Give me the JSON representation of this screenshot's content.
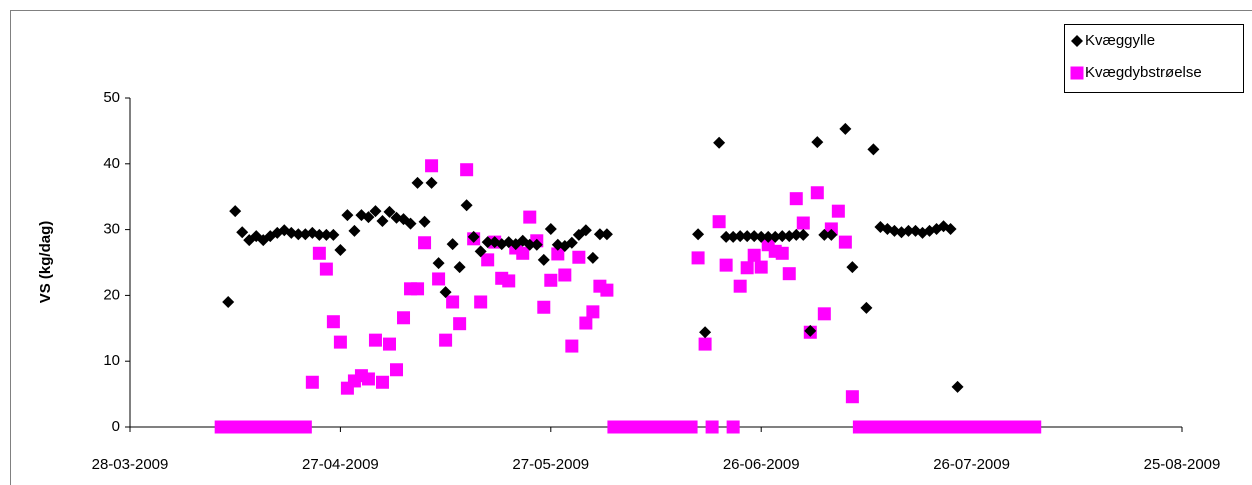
{
  "chart_data": {
    "type": "scatter",
    "y_label": "VS (kg/dag)",
    "xlim": [
      "2009-03-28",
      "2009-08-25"
    ],
    "xticks": [
      {
        "value": "2009-03-28",
        "label": "28-03-2009"
      },
      {
        "value": "2009-04-27",
        "label": "27-04-2009"
      },
      {
        "value": "2009-05-27",
        "label": "27-05-2009"
      },
      {
        "value": "2009-06-26",
        "label": "26-06-2009"
      },
      {
        "value": "2009-07-26",
        "label": "26-07-2009"
      },
      {
        "value": "2009-08-25",
        "label": "25-08-2009"
      }
    ],
    "ylim": [
      0,
      50
    ],
    "yticks": [
      0,
      10,
      20,
      30,
      40,
      50
    ],
    "grid": false,
    "legend": "top-right",
    "series": [
      {
        "name": "Kvæggylle",
        "color": "#000000",
        "marker": "diamond",
        "x": [
          "2009-04-11",
          "2009-04-12",
          "2009-04-13",
          "2009-04-14",
          "2009-04-15",
          "2009-04-16",
          "2009-04-17",
          "2009-04-18",
          "2009-04-19",
          "2009-04-20",
          "2009-04-21",
          "2009-04-22",
          "2009-04-23",
          "2009-04-24",
          "2009-04-25",
          "2009-04-26",
          "2009-04-27",
          "2009-04-28",
          "2009-04-29",
          "2009-04-30",
          "2009-05-01",
          "2009-05-02",
          "2009-05-03",
          "2009-05-04",
          "2009-05-05",
          "2009-05-06",
          "2009-05-07",
          "2009-05-08",
          "2009-05-09",
          "2009-05-10",
          "2009-05-11",
          "2009-05-12",
          "2009-05-13",
          "2009-05-14",
          "2009-05-15",
          "2009-05-16",
          "2009-05-17",
          "2009-05-18",
          "2009-05-19",
          "2009-05-20",
          "2009-05-21",
          "2009-05-22",
          "2009-05-23",
          "2009-05-24",
          "2009-05-25",
          "2009-05-26",
          "2009-05-27",
          "2009-05-28",
          "2009-05-29",
          "2009-05-30",
          "2009-05-31",
          "2009-06-01",
          "2009-06-02",
          "2009-06-03",
          "2009-06-04",
          "2009-06-17",
          "2009-06-18",
          "2009-06-20",
          "2009-06-21",
          "2009-06-22",
          "2009-06-23",
          "2009-06-24",
          "2009-06-25",
          "2009-06-26",
          "2009-06-27",
          "2009-06-28",
          "2009-06-29",
          "2009-06-30",
          "2009-07-01",
          "2009-07-02",
          "2009-07-03",
          "2009-07-04",
          "2009-07-05",
          "2009-07-06",
          "2009-07-08",
          "2009-07-09",
          "2009-07-11",
          "2009-07-12",
          "2009-07-13",
          "2009-07-14",
          "2009-07-15",
          "2009-07-16",
          "2009-07-17",
          "2009-07-18",
          "2009-07-19",
          "2009-07-20",
          "2009-07-21",
          "2009-07-22",
          "2009-07-23",
          "2009-07-24"
        ],
        "values": [
          19.0,
          32.8,
          29.6,
          28.4,
          29.0,
          28.4,
          29.0,
          29.5,
          29.9,
          29.5,
          29.3,
          29.3,
          29.5,
          29.2,
          29.2,
          29.2,
          26.9,
          32.2,
          29.8,
          32.2,
          31.9,
          32.8,
          31.3,
          32.7,
          31.8,
          31.6,
          30.9,
          37.1,
          31.2,
          37.1,
          24.9,
          20.5,
          27.8,
          24.3,
          33.7,
          28.9,
          26.7,
          28.1,
          28.1,
          27.8,
          28.1,
          27.8,
          28.3,
          27.7,
          27.7,
          25.4,
          30.1,
          27.7,
          27.5,
          28.0,
          29.2,
          29.9,
          25.7,
          29.3,
          29.3,
          29.3,
          14.4,
          43.2,
          28.9,
          28.9,
          29.0,
          29.0,
          29.0,
          28.9,
          28.9,
          28.9,
          29.0,
          29.0,
          29.2,
          29.2,
          14.6,
          43.3,
          29.2,
          29.2,
          45.3,
          24.3,
          18.1,
          42.2,
          30.4,
          30.1,
          29.8,
          29.6,
          29.8,
          29.8,
          29.5,
          29.8,
          30.1,
          30.5,
          30.1,
          6.1
        ]
      },
      {
        "name": "Kvægdybstrøelse",
        "color": "#ff00ff",
        "marker": "square",
        "x": [
          "2009-04-10",
          "2009-04-11",
          "2009-04-12",
          "2009-04-13",
          "2009-04-14",
          "2009-04-15",
          "2009-04-16",
          "2009-04-17",
          "2009-04-18",
          "2009-04-19",
          "2009-04-20",
          "2009-04-21",
          "2009-04-22",
          "2009-04-23",
          "2009-04-24",
          "2009-04-25",
          "2009-04-26",
          "2009-04-27",
          "2009-04-28",
          "2009-04-29",
          "2009-04-30",
          "2009-05-01",
          "2009-05-02",
          "2009-05-03",
          "2009-05-04",
          "2009-05-05",
          "2009-05-06",
          "2009-05-07",
          "2009-05-08",
          "2009-05-09",
          "2009-05-10",
          "2009-05-11",
          "2009-05-12",
          "2009-05-13",
          "2009-05-14",
          "2009-05-15",
          "2009-05-16",
          "2009-05-17",
          "2009-05-18",
          "2009-05-19",
          "2009-05-20",
          "2009-05-21",
          "2009-05-22",
          "2009-05-23",
          "2009-05-24",
          "2009-05-25",
          "2009-05-26",
          "2009-05-27",
          "2009-05-28",
          "2009-05-29",
          "2009-05-30",
          "2009-05-31",
          "2009-06-01",
          "2009-06-02",
          "2009-06-03",
          "2009-06-04",
          "2009-06-05",
          "2009-06-06",
          "2009-06-07",
          "2009-06-08",
          "2009-06-09",
          "2009-06-10",
          "2009-06-11",
          "2009-06-12",
          "2009-06-13",
          "2009-06-14",
          "2009-06-15",
          "2009-06-16",
          "2009-06-17",
          "2009-06-18",
          "2009-06-19",
          "2009-06-20",
          "2009-06-21",
          "2009-06-22",
          "2009-06-23",
          "2009-06-24",
          "2009-06-25",
          "2009-06-26",
          "2009-06-27",
          "2009-06-28",
          "2009-06-29",
          "2009-06-30",
          "2009-07-01",
          "2009-07-02",
          "2009-07-03",
          "2009-07-04",
          "2009-07-05",
          "2009-07-06",
          "2009-07-07",
          "2009-07-08",
          "2009-07-09",
          "2009-07-10",
          "2009-07-11",
          "2009-07-12",
          "2009-07-13",
          "2009-07-14",
          "2009-07-15",
          "2009-07-16",
          "2009-07-17",
          "2009-07-18",
          "2009-07-19",
          "2009-07-20",
          "2009-07-21",
          "2009-07-22",
          "2009-07-23",
          "2009-07-24",
          "2009-07-25",
          "2009-07-26",
          "2009-07-27",
          "2009-07-28",
          "2009-07-29",
          "2009-07-30",
          "2009-07-31",
          "2009-08-01",
          "2009-08-02",
          "2009-08-03",
          "2009-08-04"
        ],
        "values": [
          0,
          0,
          0,
          0,
          0,
          0,
          0,
          0,
          0,
          0,
          0,
          0,
          0,
          6.8,
          26.4,
          24.0,
          16.0,
          12.9,
          5.9,
          7.0,
          7.8,
          7.3,
          13.2,
          6.8,
          12.6,
          8.7,
          16.6,
          21.0,
          21.0,
          28.0,
          39.7,
          22.5,
          13.2,
          19.0,
          15.7,
          39.1,
          28.6,
          19.0,
          25.4,
          28.1,
          22.6,
          22.2,
          27.2,
          26.4,
          31.9,
          28.3,
          18.2,
          22.3,
          26.3,
          23.1,
          12.3,
          25.8,
          15.8,
          17.5,
          21.4,
          20.8,
          0,
          0,
          0,
          0,
          0,
          0,
          0,
          0,
          0,
          0,
          0,
          0,
          25.7,
          12.6,
          0,
          31.2,
          24.6,
          0,
          21.4,
          24.2,
          26.1,
          24.3,
          27.7,
          26.7,
          26.4,
          23.3,
          34.7,
          31.0,
          14.4,
          35.6,
          17.2,
          30.1,
          32.8,
          28.1,
          4.6,
          0,
          0,
          0,
          0,
          0,
          0,
          0,
          0,
          0,
          0,
          0,
          0,
          0,
          0,
          0,
          0,
          0,
          0,
          0,
          0,
          0,
          0,
          0,
          0,
          0,
          0
        ]
      }
    ]
  }
}
